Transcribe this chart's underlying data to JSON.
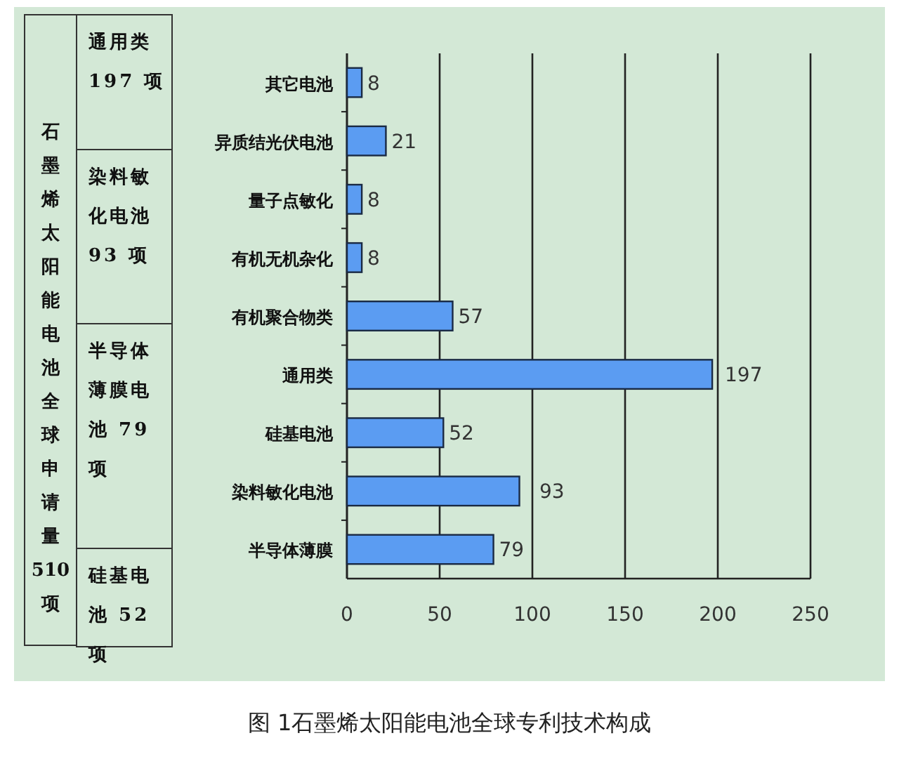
{
  "chart_data": {
    "type": "bar",
    "orientation": "horizontal",
    "title": "图 1石墨烯太阳能电池全球专利技术构成",
    "categories": [
      "其它电池",
      "异质结光伏电池",
      "量子点敏化",
      "有机无机杂化",
      "有机聚合物类",
      "通用类",
      "硅基电池",
      "染料敏化电池",
      "半导体薄膜"
    ],
    "values": [
      8,
      21,
      8,
      8,
      57,
      197,
      52,
      93,
      79
    ],
    "color": "#5b9cf2",
    "xlim": [
      0,
      250
    ],
    "xticks": [
      0,
      50,
      100,
      150,
      200,
      250
    ],
    "grid": "x",
    "data_labels": true,
    "annotations": [
      "石墨烯太阳能电池全球申请量510项",
      "通用类 197 项",
      "染料敏化电池 93 项",
      "半导体薄膜电池 79 项",
      "硅基电池 52 项"
    ]
  }
}
